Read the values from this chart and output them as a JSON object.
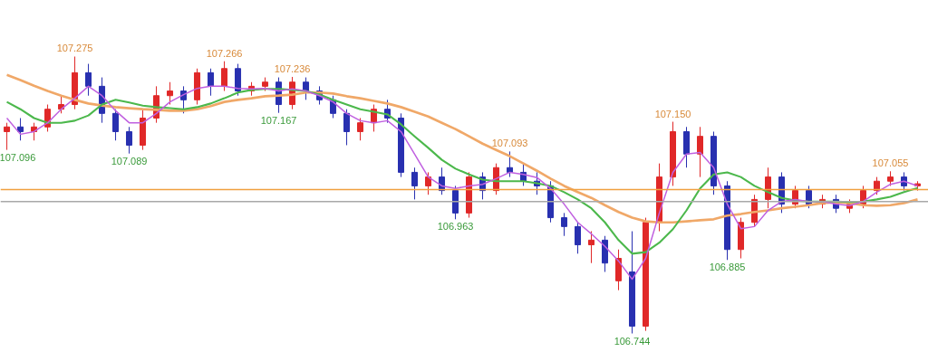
{
  "chart_data": {
    "type": "candlestick",
    "categories": [
      null,
      null,
      null,
      null,
      null,
      null,
      null,
      null,
      null,
      null,
      null,
      null,
      null,
      null,
      null,
      null,
      null,
      null,
      null,
      null,
      null,
      null,
      null,
      null,
      null,
      null,
      null,
      null,
      null,
      null,
      null,
      null,
      null,
      null,
      null,
      null,
      null,
      null,
      null,
      null,
      null,
      null,
      null,
      null,
      null,
      null,
      null,
      null,
      null,
      null,
      null,
      null,
      null,
      null,
      null,
      null,
      null,
      null,
      null,
      null,
      null,
      null,
      null,
      null,
      null,
      null,
      null,
      null
    ],
    "ohlc": [
      [
        107.131,
        107.148,
        107.096,
        107.14
      ],
      [
        107.14,
        107.157,
        107.114,
        107.131
      ],
      [
        107.131,
        107.148,
        107.114,
        107.14
      ],
      [
        107.14,
        107.183,
        107.131,
        107.174
      ],
      [
        107.174,
        107.2,
        107.166,
        107.183
      ],
      [
        107.183,
        107.275,
        107.174,
        107.244
      ],
      [
        107.244,
        107.261,
        107.2,
        107.218
      ],
      [
        107.218,
        107.235,
        107.148,
        107.166
      ],
      [
        107.166,
        107.174,
        107.114,
        107.131
      ],
      [
        107.131,
        107.14,
        107.089,
        107.105
      ],
      [
        107.105,
        107.174,
        107.096,
        107.157
      ],
      [
        107.157,
        107.218,
        107.148,
        107.2
      ],
      [
        107.2,
        107.226,
        107.183,
        107.209
      ],
      [
        107.209,
        107.218,
        107.166,
        107.192
      ],
      [
        107.192,
        107.252,
        107.183,
        107.244
      ],
      [
        107.244,
        107.252,
        107.2,
        107.218
      ],
      [
        107.218,
        107.266,
        107.209,
        107.252
      ],
      [
        107.252,
        107.261,
        107.2,
        107.209
      ],
      [
        107.209,
        107.226,
        107.2,
        107.218
      ],
      [
        107.218,
        107.235,
        107.209,
        107.226
      ],
      [
        107.226,
        107.235,
        107.167,
        107.183
      ],
      [
        107.183,
        107.236,
        107.174,
        107.226
      ],
      [
        107.226,
        107.235,
        107.192,
        107.209
      ],
      [
        107.209,
        107.218,
        107.183,
        107.192
      ],
      [
        107.192,
        107.2,
        107.157,
        107.166
      ],
      [
        107.166,
        107.174,
        107.105,
        107.131
      ],
      [
        107.131,
        107.157,
        107.114,
        107.148
      ],
      [
        107.148,
        107.183,
        107.131,
        107.174
      ],
      [
        107.174,
        107.192,
        107.148,
        107.157
      ],
      [
        107.157,
        107.166,
        107.044,
        107.053
      ],
      [
        107.053,
        107.062,
        107.001,
        107.027
      ],
      [
        107.027,
        107.053,
        107.01,
        107.044
      ],
      [
        107.044,
        107.062,
        107.01,
        107.018
      ],
      [
        107.018,
        107.027,
        106.963,
        106.975
      ],
      [
        106.975,
        107.053,
        106.966,
        107.044
      ],
      [
        107.044,
        107.053,
        107.001,
        107.018
      ],
      [
        107.018,
        107.07,
        107.01,
        107.062
      ],
      [
        107.062,
        107.093,
        107.044,
        107.053
      ],
      [
        107.053,
        107.07,
        107.027,
        107.036
      ],
      [
        107.036,
        107.053,
        107.01,
        107.027
      ],
      [
        107.027,
        107.036,
        106.957,
        106.966
      ],
      [
        106.966,
        106.975,
        106.931,
        106.949
      ],
      [
        106.949,
        106.957,
        106.897,
        106.914
      ],
      [
        106.914,
        106.94,
        106.879,
        106.923
      ],
      [
        106.923,
        106.931,
        106.862,
        106.879
      ],
      [
        106.845,
        106.905,
        106.827,
        106.888
      ],
      [
        106.862,
        106.94,
        106.744,
        106.758
      ],
      [
        106.758,
        106.966,
        106.749,
        106.957
      ],
      [
        106.957,
        107.07,
        106.94,
        107.044
      ],
      [
        107.044,
        107.15,
        107.027,
        107.131
      ],
      [
        107.131,
        107.14,
        107.062,
        107.088
      ],
      [
        107.088,
        107.14,
        107.044,
        107.122
      ],
      [
        107.122,
        107.131,
        107.01,
        107.027
      ],
      [
        107.027,
        107.036,
        106.885,
        106.905
      ],
      [
        106.905,
        106.966,
        106.888,
        106.957
      ],
      [
        106.957,
        107.01,
        106.949,
        107.001
      ],
      [
        107.001,
        107.062,
        106.984,
        107.044
      ],
      [
        107.044,
        107.053,
        106.975,
        106.992
      ],
      [
        106.992,
        107.027,
        106.984,
        107.018
      ],
      [
        107.018,
        107.027,
        106.984,
        106.992
      ],
      [
        106.992,
        107.01,
        106.984,
        107.001
      ],
      [
        107.001,
        107.01,
        106.975,
        106.984
      ],
      [
        106.984,
        107.001,
        106.975,
        106.992
      ],
      [
        106.992,
        107.027,
        106.984,
        107.018
      ],
      [
        107.018,
        107.044,
        107.01,
        107.036
      ],
      [
        107.036,
        107.055,
        107.027,
        107.044
      ],
      [
        107.044,
        107.053,
        107.018,
        107.027
      ],
      [
        107.027,
        107.036,
        107.018,
        107.031
      ]
    ],
    "value_labels": [
      "107.096",
      null,
      null,
      null,
      null,
      "107.275",
      null,
      null,
      null,
      "107.089",
      null,
      null,
      null,
      null,
      null,
      null,
      "107.266",
      null,
      null,
      null,
      "107.167",
      "107.236",
      null,
      null,
      null,
      null,
      null,
      null,
      null,
      null,
      null,
      null,
      null,
      "106.963",
      null,
      null,
      null,
      "107.093",
      null,
      null,
      null,
      null,
      null,
      null,
      null,
      null,
      "106.744",
      null,
      null,
      "107.150",
      null,
      null,
      null,
      "106.885",
      null,
      null,
      null,
      null,
      null,
      null,
      null,
      null,
      null,
      null,
      null,
      "107.055",
      null,
      null
    ],
    "series": [
      {
        "type": "line",
        "color": "#f0a868",
        "values": [
          107.24,
          107.23,
          107.219,
          107.209,
          107.2,
          107.192,
          107.185,
          107.181,
          107.178,
          107.176,
          107.174,
          107.173,
          107.171,
          107.171,
          107.174,
          107.18,
          107.188,
          107.192,
          107.195,
          107.199,
          107.2,
          107.202,
          107.206,
          107.206,
          107.204,
          107.199,
          107.195,
          107.19,
          107.185,
          107.178,
          107.169,
          107.16,
          107.148,
          107.136,
          107.122,
          107.108,
          107.096,
          107.084,
          107.07,
          107.056,
          107.041,
          107.027,
          107.015,
          107.004,
          106.99,
          106.977,
          106.966,
          106.959,
          106.957,
          106.957,
          106.959,
          106.961,
          106.963,
          106.97,
          106.973,
          106.977,
          106.98,
          106.984,
          106.987,
          106.99,
          106.994,
          106.996,
          106.994,
          106.99,
          106.989,
          106.99,
          106.994,
          107.001
        ]
      },
      {
        "type": "line",
        "color": "#4cb84c",
        "values": [
          107.188,
          107.174,
          107.157,
          107.148,
          107.148,
          107.152,
          107.162,
          107.183,
          107.192,
          107.187,
          107.181,
          107.178,
          107.176,
          107.174,
          107.178,
          107.185,
          107.195,
          107.206,
          107.211,
          107.213,
          107.213,
          107.211,
          107.209,
          107.202,
          107.192,
          107.183,
          107.174,
          107.169,
          107.164,
          107.145,
          107.122,
          107.1,
          107.077,
          107.06,
          107.049,
          107.039,
          107.036,
          107.036,
          107.036,
          107.032,
          107.027,
          107.015,
          107.001,
          106.984,
          106.957,
          106.923,
          106.897,
          106.9,
          106.918,
          106.944,
          106.98,
          107.022,
          107.049,
          107.053,
          107.044,
          107.027,
          107.015,
          107.004,
          106.999,
          106.997,
          106.997,
          106.997,
          106.996,
          106.997,
          107.001,
          107.006,
          107.015,
          107.023
        ]
      },
      {
        "type": "line",
        "color": "#c060e0",
        "values": [
          107.157,
          107.126,
          107.131,
          107.148,
          107.174,
          107.195,
          107.218,
          107.2,
          107.171,
          107.148,
          107.148,
          107.166,
          107.188,
          107.202,
          107.214,
          107.218,
          107.218,
          107.214,
          107.213,
          107.214,
          107.209,
          107.213,
          107.209,
          107.2,
          107.188,
          107.166,
          107.152,
          107.148,
          107.152,
          107.131,
          107.088,
          107.044,
          107.027,
          107.022,
          107.027,
          107.03,
          107.041,
          107.053,
          107.049,
          107.043,
          107.022,
          106.992,
          106.957,
          106.935,
          106.911,
          106.883,
          106.848,
          106.888,
          106.975,
          107.053,
          107.088,
          107.091,
          107.062,
          106.992,
          106.945,
          106.949,
          106.98,
          106.997,
          107.001,
          106.997,
          106.997,
          106.992,
          106.989,
          106.997,
          107.015,
          107.03,
          107.036,
          107.027
        ]
      }
    ],
    "ref_lines": [
      {
        "axis": "y",
        "value": 107.02,
        "color": "#f0a040"
      },
      {
        "axis": "y",
        "value": 106.997,
        "color": "#a8a8a8"
      }
    ],
    "tick_labels": false
  }
}
